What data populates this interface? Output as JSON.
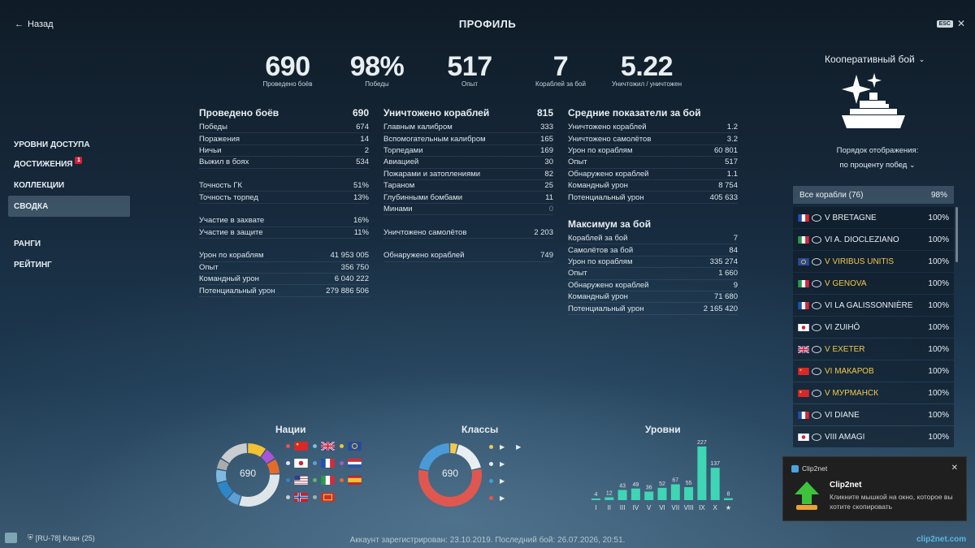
{
  "header": {
    "back_label": "Назад",
    "title": "ПРОФИЛЬ",
    "esc_label": "ESC"
  },
  "nav": {
    "items": [
      {
        "label": "УРОВНИ ДОСТУПА"
      },
      {
        "label": "ДОСТИЖЕНИЯ",
        "badge": "1"
      },
      {
        "label": "КОЛЛЕКЦИИ"
      },
      {
        "label": "СВОДКА",
        "active": true
      },
      {
        "label": "РАНГИ"
      },
      {
        "label": "РЕЙТИНГ"
      }
    ]
  },
  "summary": [
    {
      "value": "690",
      "label": "Проведено боёв"
    },
    {
      "value": "98%",
      "label": "Победы"
    },
    {
      "value": "517",
      "label": "Опыт"
    },
    {
      "value": "7",
      "label": "Кораблей за бой"
    },
    {
      "value": "5.22",
      "label": "Уничтожил / уничтожен"
    }
  ],
  "battles": {
    "title": "Проведено боёв",
    "total": "690",
    "rows": [
      [
        "Победы",
        "674"
      ],
      [
        "Поражения",
        "14"
      ],
      [
        "Ничьи",
        "2"
      ],
      [
        "Выжил в боях",
        "534"
      ],
      null,
      [
        "Точность ГК",
        "51%"
      ],
      [
        "Точность торпед",
        "13%"
      ],
      null,
      [
        "Участие в захвате",
        "16%"
      ],
      [
        "Участие в защите",
        "11%"
      ],
      null,
      [
        "Урон по кораблям",
        "41 953 005"
      ],
      [
        "Опыт",
        "356 750"
      ],
      [
        "Командный урон",
        "6 040 222"
      ],
      [
        "Потенциальный урон",
        "279 886 506"
      ]
    ]
  },
  "destroyed": {
    "title": "Уничтожено кораблей",
    "total": "815",
    "rows": [
      [
        "Главным калибром",
        "333"
      ],
      [
        "Вспомогательным калибром",
        "165"
      ],
      [
        "Торпедами",
        "169"
      ],
      [
        "Авиацией",
        "30"
      ],
      [
        "Пожарами и затоплениями",
        "82"
      ],
      [
        "Тараном",
        "25"
      ],
      [
        "Глубинными бомбами",
        "11"
      ],
      [
        "Минами",
        "0"
      ],
      null,
      [
        "Уничтожено самолётов",
        "2 203"
      ],
      null,
      [
        "Обнаружено кораблей",
        "749"
      ]
    ]
  },
  "averages": {
    "title": "Средние показатели за бой",
    "rows": [
      [
        "Уничтожено кораблей",
        "1.2"
      ],
      [
        "Уничтожено самолётов",
        "3.2"
      ],
      [
        "Урон по кораблям",
        "60 801"
      ],
      [
        "Опыт",
        "517"
      ],
      [
        "Обнаружено кораблей",
        "1.1"
      ],
      [
        "Командный урон",
        "8 754"
      ],
      [
        "Потенциальный урон",
        "405 633"
      ]
    ]
  },
  "maximum": {
    "title": "Максимум за бой",
    "rows": [
      [
        "Кораблей за бой",
        "7"
      ],
      [
        "Самолётов за бой",
        "84"
      ],
      [
        "Урон по кораблям",
        "335 274"
      ],
      [
        "Опыт",
        "1 660"
      ],
      [
        "Обнаружено кораблей",
        "9"
      ],
      [
        "Командный урон",
        "71 680"
      ],
      [
        "Потенциальный урон",
        "2 165 420"
      ]
    ]
  },
  "right_panel": {
    "mode": "Кооперативный бой",
    "order_label": "Порядок отображения:",
    "order_value": "по проценту побед",
    "all_ships_label": "Все корабли (76)",
    "all_ships_pct": "98%",
    "ships": [
      {
        "name": "V BRETAGNE",
        "pct": "100%",
        "flag": "france",
        "gold": false
      },
      {
        "name": "VI A. DIOCLEZIANO",
        "pct": "100%",
        "flag": "italy",
        "gold": false
      },
      {
        "name": "V VIRIBUS UNITIS",
        "pct": "100%",
        "flag": "europe",
        "gold": true
      },
      {
        "name": "V GENOVA",
        "pct": "100%",
        "flag": "italy",
        "gold": true
      },
      {
        "name": "VI LA GALISSONNIÈRE",
        "pct": "100%",
        "flag": "france",
        "gold": false
      },
      {
        "name": "VI ZUIHŌ",
        "pct": "100%",
        "flag": "japan",
        "gold": false
      },
      {
        "name": "V EXETER",
        "pct": "100%",
        "flag": "uk",
        "gold": true
      },
      {
        "name": "VI МАКАРОВ",
        "pct": "100%",
        "flag": "ussr",
        "gold": true
      },
      {
        "name": "V МУРМАНСК",
        "pct": "100%",
        "flag": "ussr",
        "gold": true
      },
      {
        "name": "VI DIANE",
        "pct": "100%",
        "flag": "france",
        "gold": false
      },
      {
        "name": "VIII AMAGI",
        "pct": "100%",
        "flag": "japan",
        "gold": false
      }
    ]
  },
  "nations": {
    "title": "Нации",
    "center": "690",
    "segments": [
      {
        "value": 70,
        "color": "#f2c233"
      },
      {
        "value": 45,
        "color": "#a855d8"
      },
      {
        "value": 55,
        "color": "#e66b2a"
      },
      {
        "value": 210,
        "color": "#dfe6ea"
      },
      {
        "value": 45,
        "color": "#5aa0d6"
      },
      {
        "value": 65,
        "color": "#2d86c8"
      },
      {
        "value": 50,
        "color": "#7fb8e0"
      },
      {
        "value": 40,
        "color": "#a8acaf"
      },
      {
        "value": 110,
        "color": "#c8cdd0"
      }
    ],
    "legend": [
      {
        "dot": "#e05555",
        "flag": "ussr"
      },
      {
        "dot": "#7fb8e0",
        "flag": "uk"
      },
      {
        "dot": "#f2c233",
        "flag": "europe"
      },
      {
        "dot": "#dfe6ea",
        "flag": "japan"
      },
      {
        "dot": "#5aa0d6",
        "flag": "france"
      },
      {
        "dot": "#a855d8",
        "flag": "netherlands"
      },
      {
        "dot": "#2d86c8",
        "flag": "usa"
      },
      {
        "dot": "#5ab86a",
        "flag": "italy"
      },
      {
        "dot": "#e66b2a",
        "flag": "spain"
      },
      {
        "dot": "#c8cdd0",
        "flag": "norway"
      },
      {
        "dot": "#a8acaf",
        "flag": "panamerica"
      }
    ]
  },
  "classes": {
    "title": "Классы",
    "center": "690",
    "segments": [
      {
        "value": 30,
        "color": "#f2c94c"
      },
      {
        "value": 120,
        "color": "#e8eef2"
      },
      {
        "value": 390,
        "color": "#e0574f"
      },
      {
        "value": 150,
        "color": "#4a9ad8"
      }
    ],
    "legend": [
      {
        "dot": "#f2c94c",
        "icon": "carrier-icon"
      },
      {
        "dot": "#e8eef2",
        "icon": "battleship-icon"
      },
      {
        "dot": "#4a9ad8",
        "icon": "cruiser-icon"
      },
      {
        "dot": "#e0574f",
        "icon": "destroyer-icon"
      }
    ]
  },
  "chart_data": {
    "type": "bar",
    "title": "Уровни",
    "categories": [
      "I",
      "II",
      "III",
      "IV",
      "V",
      "VI",
      "VII",
      "VIII",
      "IX",
      "X",
      "★"
    ],
    "values": [
      4,
      12,
      43,
      49,
      36,
      52,
      67,
      55,
      227,
      137,
      8
    ]
  },
  "toast": {
    "app": "Clip2net",
    "title": "Clip2net",
    "text": "Кликните мышкой на окно, которое вы хотите скопировать"
  },
  "footer": {
    "text": "Аккаунт зарегистрирован: 23.10.2019. Последний бой: 26.07.2026, 20:51.",
    "clan": "[RU-78] Клан",
    "clan_count": "(25)",
    "logo": "clip2net.com"
  },
  "colors": {
    "bar": "#3ed6b4",
    "gold": "#f2c94c",
    "accent": "#d0213a"
  }
}
